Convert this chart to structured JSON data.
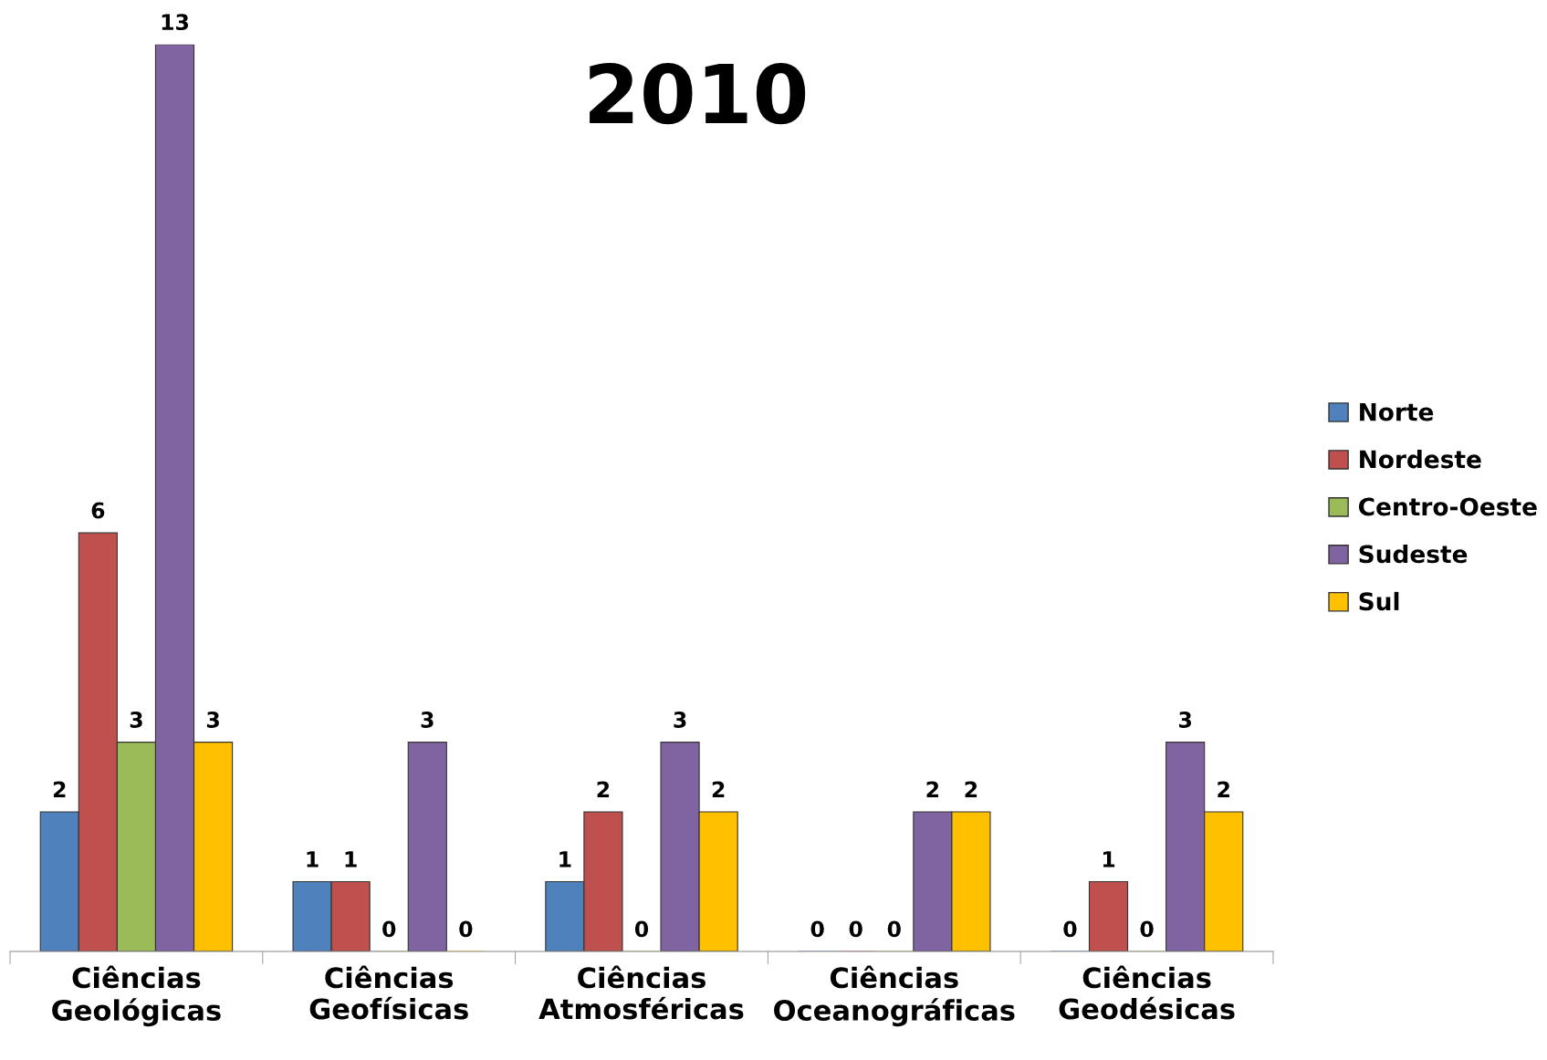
{
  "chart_data": {
    "type": "bar",
    "title": "2010",
    "categories": [
      "Ciências\nGeológicas",
      "Ciências\nGeofísicas",
      "Ciências\nAtmosféricas",
      "Ciências\nOceanográficas",
      "Ciências\nGeodésicas"
    ],
    "series": [
      {
        "name": "Norte",
        "color": "#4f81bd",
        "values": [
          2,
          1,
          1,
          0,
          0
        ]
      },
      {
        "name": "Nordeste",
        "color": "#c0504d",
        "values": [
          6,
          1,
          2,
          0,
          1
        ]
      },
      {
        "name": "Centro-Oeste",
        "color": "#9bbb59",
        "values": [
          3,
          0,
          0,
          0,
          0
        ]
      },
      {
        "name": "Sudeste",
        "color": "#8064a2",
        "values": [
          13,
          3,
          3,
          2,
          3
        ]
      },
      {
        "name": "Sul",
        "color": "#ffc000",
        "values": [
          3,
          0,
          2,
          2,
          2
        ]
      }
    ],
    "ylim": [
      0,
      13
    ],
    "data_labels": true,
    "legend": "right",
    "grid": false,
    "tick_labels": "x"
  }
}
